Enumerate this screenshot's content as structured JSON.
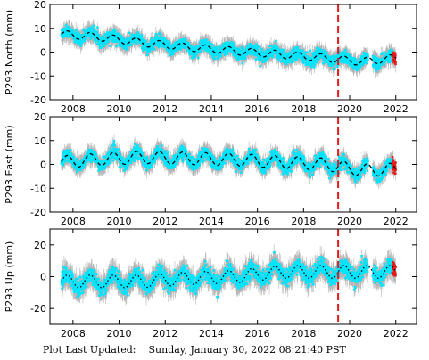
{
  "footer": {
    "label": "Plot Last Updated:",
    "value": "Sunday, January 30, 2022 08:21:40 PST"
  },
  "colors": {
    "background": "#ffffff",
    "data": "#00e5ff",
    "errorbar": "#b4b4b4",
    "model": "#000000",
    "event": "#e21a1a",
    "recent": "#e21a1a"
  },
  "chart_data": [
    {
      "type": "scatter",
      "ylabel": "P293 North (mm)",
      "xlim": [
        2007.0,
        2022.9
      ],
      "ylim": [
        -20,
        20
      ],
      "yticks": [
        -20,
        -10,
        0,
        10,
        20
      ],
      "xticks": [
        2008,
        2010,
        2012,
        2014,
        2016,
        2018,
        2020,
        2022
      ],
      "event_line_x": 2019.5,
      "trend": {
        "start_year": 2007.5,
        "start_value": 7.5,
        "rate_mm_per_yr": -0.72,
        "seasonal_amplitude": 1.6,
        "scatter": 2.2,
        "error_bar": 3.0
      },
      "series": [
        {
          "x": [
            2007.5,
            2009.0,
            2011.0,
            2013.0,
            2015.0,
            2017.0,
            2019.0,
            2020.5,
            2022.0
          ],
          "values": [
            7.5,
            6.5,
            4.0,
            2.0,
            0.5,
            -1.0,
            -2.5,
            -4.0,
            -2.5
          ]
        }
      ]
    },
    {
      "type": "scatter",
      "ylabel": "P293 East (mm)",
      "xlim": [
        2007.0,
        2022.9
      ],
      "ylim": [
        -20,
        20
      ],
      "yticks": [
        -20,
        -10,
        0,
        10,
        20
      ],
      "xticks": [
        2008,
        2010,
        2012,
        2014,
        2016,
        2018,
        2020,
        2022
      ],
      "event_line_x": 2019.5,
      "trend": {
        "start_year": 2007.5,
        "start_value": 0.5,
        "rate_mm_per_yr": -0.05,
        "seasonal_amplitude": 2.6,
        "scatter": 2.3,
        "error_bar": 3.0
      },
      "series": [
        {
          "x": [
            2007.5,
            2009.0,
            2011.0,
            2013.0,
            2015.0,
            2017.0,
            2019.0,
            2020.5,
            2022.0
          ],
          "values": [
            1.0,
            2.0,
            3.0,
            2.5,
            2.0,
            1.0,
            0.0,
            -2.5,
            -2.0
          ]
        }
      ]
    },
    {
      "type": "scatter",
      "ylabel": "P293 Up (mm)",
      "xlim": [
        2007.0,
        2022.9
      ],
      "ylim": [
        -30,
        30
      ],
      "yticks": [
        -20,
        0,
        20
      ],
      "xticks": [
        2008,
        2010,
        2012,
        2014,
        2016,
        2018,
        2020,
        2022
      ],
      "event_line_x": 2019.5,
      "trend": {
        "start_year": 2007.5,
        "start_value": -3.5,
        "rate_mm_per_yr": 0.5,
        "seasonal_amplitude": 4.0,
        "scatter": 4.5,
        "error_bar": 6.0
      },
      "series": [
        {
          "x": [
            2007.5,
            2009.0,
            2011.0,
            2013.0,
            2015.0,
            2017.0,
            2019.0,
            2020.5,
            2022.0
          ],
          "values": [
            -3.0,
            -3.0,
            -3.0,
            -1.0,
            0.0,
            3.0,
            3.0,
            3.0,
            3.0
          ]
        }
      ]
    }
  ]
}
